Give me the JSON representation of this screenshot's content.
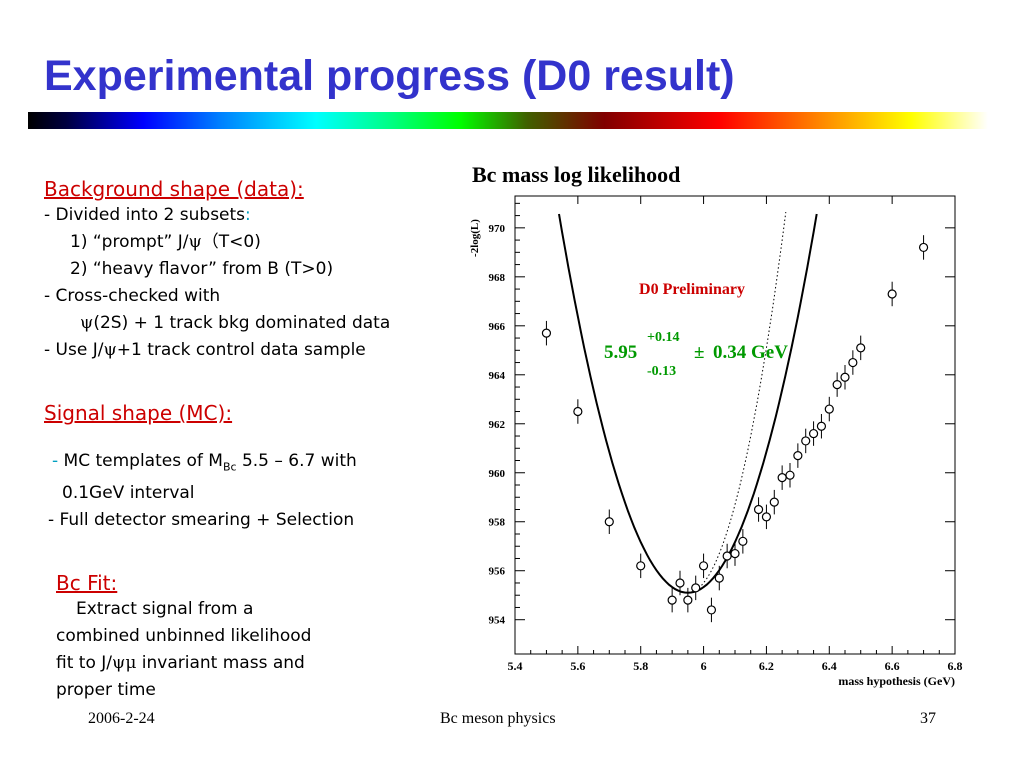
{
  "slide": {
    "title": "Experimental progress (D0 result)"
  },
  "background": {
    "heading": "Background shape (data):",
    "line1": "- Divided into 2 subsets",
    "line1_colon": ":",
    "line2_pre": "1) “prompt” J/",
    "line2_psi": "ψ",
    "line2_post": "（T<0)",
    "line3": "2) “heavy flavor” from B (T>0)",
    "line4": "- Cross-checked with",
    "line5_psi": "ψ",
    "line5_post": "(2S) + 1 track bkg dominated data",
    "line6_pre": "- Use J/",
    "line6_psi": "ψ",
    "line6_post": "+1 track control data sample"
  },
  "signal": {
    "heading": "Signal shape (MC):",
    "dash": "-",
    "line1_pre": " MC templates of M",
    "line1_sub": "Bc",
    "line1_post": " 5.5 – 6.7 with",
    "line2": "0.1GeV interval",
    "line3": "- Full detector smearing + Selection"
  },
  "fit": {
    "heading": "Bc Fit:",
    "line1": "Extract signal from a",
    "line2": "combined unbinned likelihood",
    "line3_pre": "fit to J/",
    "line3_psi": "ψμ",
    "line3_post": " invariant mass and",
    "line4": "proper time"
  },
  "chart_title": "Bc mass log likelihood",
  "chart_data": {
    "type": "scatter",
    "title": "Bc mass log likelihood",
    "xlabel": "mass hypothesis (GeV)",
    "ylabel": "-2log(L)",
    "xlim": [
      5.4,
      6.8
    ],
    "ylim": [
      952.6,
      971.3
    ],
    "x_ticks": [
      5.4,
      5.6,
      5.8,
      6,
      6.2,
      6.4,
      6.6,
      6.8
    ],
    "x_tick_labels": [
      "5.4",
      "5.6",
      "5.8",
      "6",
      "6.2",
      "6.4",
      "6.6",
      "6.8"
    ],
    "y_ticks": [
      954,
      956,
      958,
      960,
      962,
      964,
      966,
      968,
      970
    ],
    "y_tick_labels": [
      "954",
      "956",
      "958",
      "960",
      "962",
      "964",
      "966",
      "968",
      "970"
    ],
    "grid": false,
    "annotation": "D0 Preliminary",
    "annotation_color": "#cc0000",
    "result": {
      "value": "5.95",
      "err_plus": "+0.14",
      "err_minus": "-0.13",
      "pm": "±",
      "syst": "0.34 GeV",
      "color": "#009900"
    },
    "points": [
      {
        "x": 5.5,
        "y": 965.7,
        "err": 0.5
      },
      {
        "x": 5.6,
        "y": 962.5,
        "err": 0.5
      },
      {
        "x": 5.7,
        "y": 958.0,
        "err": 0.5
      },
      {
        "x": 5.8,
        "y": 956.2,
        "err": 0.5
      },
      {
        "x": 5.9,
        "y": 954.8,
        "err": 0.5
      },
      {
        "x": 5.925,
        "y": 955.5,
        "err": 0.5
      },
      {
        "x": 5.95,
        "y": 954.8,
        "err": 0.5
      },
      {
        "x": 5.975,
        "y": 955.3,
        "err": 0.5
      },
      {
        "x": 6.0,
        "y": 956.2,
        "err": 0.5
      },
      {
        "x": 6.025,
        "y": 954.4,
        "err": 0.5
      },
      {
        "x": 6.05,
        "y": 955.7,
        "err": 0.5
      },
      {
        "x": 6.075,
        "y": 956.6,
        "err": 0.5
      },
      {
        "x": 6.1,
        "y": 956.7,
        "err": 0.5
      },
      {
        "x": 6.125,
        "y": 957.2,
        "err": 0.5
      },
      {
        "x": 6.175,
        "y": 958.5,
        "err": 0.5
      },
      {
        "x": 6.2,
        "y": 958.2,
        "err": 0.5
      },
      {
        "x": 6.225,
        "y": 958.8,
        "err": 0.5
      },
      {
        "x": 6.25,
        "y": 959.8,
        "err": 0.5
      },
      {
        "x": 6.275,
        "y": 959.9,
        "err": 0.5
      },
      {
        "x": 6.3,
        "y": 960.7,
        "err": 0.5
      },
      {
        "x": 6.325,
        "y": 961.3,
        "err": 0.5
      },
      {
        "x": 6.35,
        "y": 961.6,
        "err": 0.5
      },
      {
        "x": 6.375,
        "y": 961.9,
        "err": 0.5
      },
      {
        "x": 6.4,
        "y": 962.6,
        "err": 0.5
      },
      {
        "x": 6.425,
        "y": 963.6,
        "err": 0.5
      },
      {
        "x": 6.45,
        "y": 963.9,
        "err": 0.5
      },
      {
        "x": 6.475,
        "y": 964.5,
        "err": 0.5
      },
      {
        "x": 6.5,
        "y": 965.1,
        "err": 0.5
      },
      {
        "x": 6.6,
        "y": 967.3,
        "err": 0.5
      },
      {
        "x": 6.7,
        "y": 969.2,
        "err": 0.5
      }
    ],
    "fit_curve": {
      "type": "parabola",
      "x_min": 5.95,
      "y_min": 955.1,
      "curvature": 92,
      "x_range": [
        5.4,
        6.6
      ]
    },
    "dotted_curve": {
      "type": "parabola",
      "x_min": 5.95,
      "y_min": 955.1,
      "curvature": 160,
      "x_range": [
        5.95,
        6.8
      ]
    }
  },
  "footer": {
    "date": "2006-2-24",
    "center": "Bc meson physics",
    "page": "37"
  }
}
